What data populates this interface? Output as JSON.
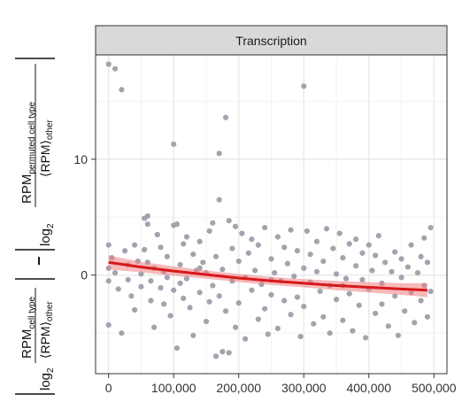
{
  "chart_data": {
    "type": "scatter",
    "facet": "Transcription",
    "x_ticks": [
      0,
      100000,
      200000,
      300000,
      400000,
      500000
    ],
    "x_tick_labels": [
      "0",
      "100,000",
      "200,000",
      "300,000",
      "400,000",
      "500,000"
    ],
    "y_ticks": [
      0,
      10
    ],
    "y_tick_labels": [
      "0",
      "10"
    ],
    "xlim": [
      -20000,
      520000
    ],
    "ylim": [
      -8.5,
      19
    ],
    "grid": true,
    "ylabel": {
      "part1_numerator": "RPM",
      "part1_numerator_sub": "cell type",
      "part1_prefix": "log",
      "part1_base": "2",
      "part1_denominator": "⟨RPM⟩",
      "part1_denominator_sub": "other",
      "operator": "−",
      "part2_numerator": "RPM",
      "part2_numerator_sub": "permuted cell type",
      "part2_prefix": "log",
      "part2_base": "2",
      "part2_denominator": "⟨RPM⟩",
      "part2_denominator_sub": "other"
    },
    "trend": {
      "x": [
        0,
        50000,
        100000,
        150000,
        200000,
        250000,
        300000,
        350000,
        400000,
        450000,
        490000
      ],
      "y": [
        1.1,
        0.7,
        0.35,
        0.05,
        -0.25,
        -0.5,
        -0.7,
        -0.9,
        -1.05,
        -1.2,
        -1.3
      ],
      "ci_upper": [
        1.7,
        1.15,
        0.75,
        0.4,
        0.1,
        -0.15,
        -0.35,
        -0.5,
        -0.6,
        -0.7,
        -0.7
      ],
      "ci_lower": [
        0.5,
        0.25,
        -0.05,
        -0.3,
        -0.6,
        -0.85,
        -1.05,
        -1.3,
        -1.5,
        -1.7,
        -1.9
      ]
    },
    "points": [
      [
        0,
        18.2
      ],
      [
        10000,
        17.8
      ],
      [
        20000,
        16
      ],
      [
        0,
        2.6
      ],
      [
        0,
        0.6
      ],
      [
        0,
        -0.5
      ],
      [
        5000,
        1.5
      ],
      [
        10000,
        0.2
      ],
      [
        15000,
        -1.2
      ],
      [
        0,
        -4.3
      ],
      [
        20000,
        -5
      ],
      [
        25000,
        2.1
      ],
      [
        30000,
        0.9
      ],
      [
        30000,
        -0.4
      ],
      [
        35000,
        -1.8
      ],
      [
        40000,
        2.6
      ],
      [
        40000,
        -3
      ],
      [
        45000,
        1.2
      ],
      [
        50000,
        0.1
      ],
      [
        50000,
        -1
      ],
      [
        55000,
        4.9
      ],
      [
        60000,
        5.1
      ],
      [
        60000,
        4.4
      ],
      [
        55000,
        2.2
      ],
      [
        60000,
        1.1
      ],
      [
        65000,
        -0.5
      ],
      [
        65000,
        -2.2
      ],
      [
        70000,
        -4.5
      ],
      [
        70000,
        0.6
      ],
      [
        75000,
        3.5
      ],
      [
        80000,
        2.4
      ],
      [
        80000,
        -1.1
      ],
      [
        85000,
        0.3
      ],
      [
        85000,
        -2.5
      ],
      [
        90000,
        1.6
      ],
      [
        90000,
        -0.2
      ],
      [
        95000,
        -3.5
      ],
      [
        100000,
        11.3
      ],
      [
        100000,
        4.3
      ],
      [
        100000,
        -1.3
      ],
      [
        105000,
        4.4
      ],
      [
        105000,
        -6.3
      ],
      [
        110000,
        0.9
      ],
      [
        110000,
        -0.7
      ],
      [
        115000,
        2.7
      ],
      [
        115000,
        -2
      ],
      [
        120000,
        3.3
      ],
      [
        120000,
        -0.3
      ],
      [
        125000,
        -2.8
      ],
      [
        130000,
        1.8
      ],
      [
        130000,
        -5.2
      ],
      [
        135000,
        0.4
      ],
      [
        140000,
        -1.5
      ],
      [
        140000,
        2.9
      ],
      [
        145000,
        1.1
      ],
      [
        150000,
        -4
      ],
      [
        150000,
        0.2
      ],
      [
        155000,
        3.8
      ],
      [
        155000,
        -2.3
      ],
      [
        160000,
        4.5
      ],
      [
        160000,
        -0.9
      ],
      [
        165000,
        -7
      ],
      [
        165000,
        1.6
      ],
      [
        170000,
        10.5
      ],
      [
        170000,
        6.5
      ],
      [
        170000,
        -1.8
      ],
      [
        175000,
        -6.6
      ],
      [
        175000,
        0.5
      ],
      [
        180000,
        13.6
      ],
      [
        180000,
        -3.1
      ],
      [
        185000,
        4.7
      ],
      [
        185000,
        -6.7
      ],
      [
        190000,
        2.3
      ],
      [
        190000,
        -0.5
      ],
      [
        195000,
        4.2
      ],
      [
        195000,
        -4.5
      ],
      [
        200000,
        1.2
      ],
      [
        200000,
        -2.4
      ],
      [
        205000,
        3.6
      ],
      [
        210000,
        -0.2
      ],
      [
        210000,
        -5.5
      ],
      [
        215000,
        1.9
      ],
      [
        220000,
        -1.3
      ],
      [
        220000,
        3.1
      ],
      [
        225000,
        0.4
      ],
      [
        230000,
        -3.8
      ],
      [
        230000,
        2.6
      ],
      [
        235000,
        -0.8
      ],
      [
        240000,
        4.1
      ],
      [
        240000,
        -2.9
      ],
      [
        245000,
        -5.1
      ],
      [
        250000,
        1.4
      ],
      [
        250000,
        -1.7
      ],
      [
        255000,
        0.2
      ],
      [
        260000,
        3.3
      ],
      [
        260000,
        -4.6
      ],
      [
        265000,
        -0.5
      ],
      [
        270000,
        2.4
      ],
      [
        270000,
        -2.2
      ],
      [
        275000,
        1
      ],
      [
        280000,
        -3.4
      ],
      [
        280000,
        3.9
      ],
      [
        285000,
        -0.1
      ],
      [
        290000,
        -1.9
      ],
      [
        290000,
        2.1
      ],
      [
        295000,
        -5.3
      ],
      [
        300000,
        16.3
      ],
      [
        300000,
        0.6
      ],
      [
        300000,
        -2.7
      ],
      [
        305000,
        3.8
      ],
      [
        310000,
        -0.6
      ],
      [
        310000,
        1.8
      ],
      [
        315000,
        -4.2
      ],
      [
        320000,
        0.3
      ],
      [
        320000,
        2.9
      ],
      [
        325000,
        -1.4
      ],
      [
        330000,
        -3.6
      ],
      [
        330000,
        1.2
      ],
      [
        335000,
        4
      ],
      [
        340000,
        -0.9
      ],
      [
        340000,
        -5
      ],
      [
        345000,
        2.3
      ],
      [
        350000,
        0.1
      ],
      [
        350000,
        -2.1
      ],
      [
        355000,
        3.6
      ],
      [
        360000,
        -3.9
      ],
      [
        360000,
        1.5
      ],
      [
        365000,
        -0.3
      ],
      [
        370000,
        2.7
      ],
      [
        370000,
        -1.6
      ],
      [
        375000,
        -4.8
      ],
      [
        380000,
        0.8
      ],
      [
        380000,
        3.1
      ],
      [
        385000,
        -2.6
      ],
      [
        390000,
        -0.4
      ],
      [
        390000,
        1.9
      ],
      [
        395000,
        -5.4
      ],
      [
        400000,
        2.6
      ],
      [
        400000,
        -1.2
      ],
      [
        405000,
        0.4
      ],
      [
        410000,
        -3.3
      ],
      [
        410000,
        1.7
      ],
      [
        415000,
        3.4
      ],
      [
        420000,
        -0.7
      ],
      [
        420000,
        -2.5
      ],
      [
        425000,
        1.1
      ],
      [
        430000,
        -4.4
      ],
      [
        435000,
        0.3
      ],
      [
        440000,
        2
      ],
      [
        440000,
        -1.8
      ],
      [
        445000,
        -5.2
      ],
      [
        450000,
        -0.2
      ],
      [
        450000,
        1.4
      ],
      [
        455000,
        -3.1
      ],
      [
        460000,
        0.7
      ],
      [
        465000,
        -1.5
      ],
      [
        465000,
        2.6
      ],
      [
        470000,
        -4.1
      ],
      [
        475000,
        0.2
      ],
      [
        480000,
        1.6
      ],
      [
        480000,
        -2.2
      ],
      [
        485000,
        -0.9
      ],
      [
        485000,
        3.2
      ],
      [
        490000,
        -3.6
      ],
      [
        490000,
        1.1
      ],
      [
        495000,
        4.1
      ],
      [
        495000,
        -1.4
      ],
      [
        360000,
        -0.9
      ],
      [
        250000,
        -0.4
      ],
      [
        140000,
        0.6
      ]
    ]
  }
}
